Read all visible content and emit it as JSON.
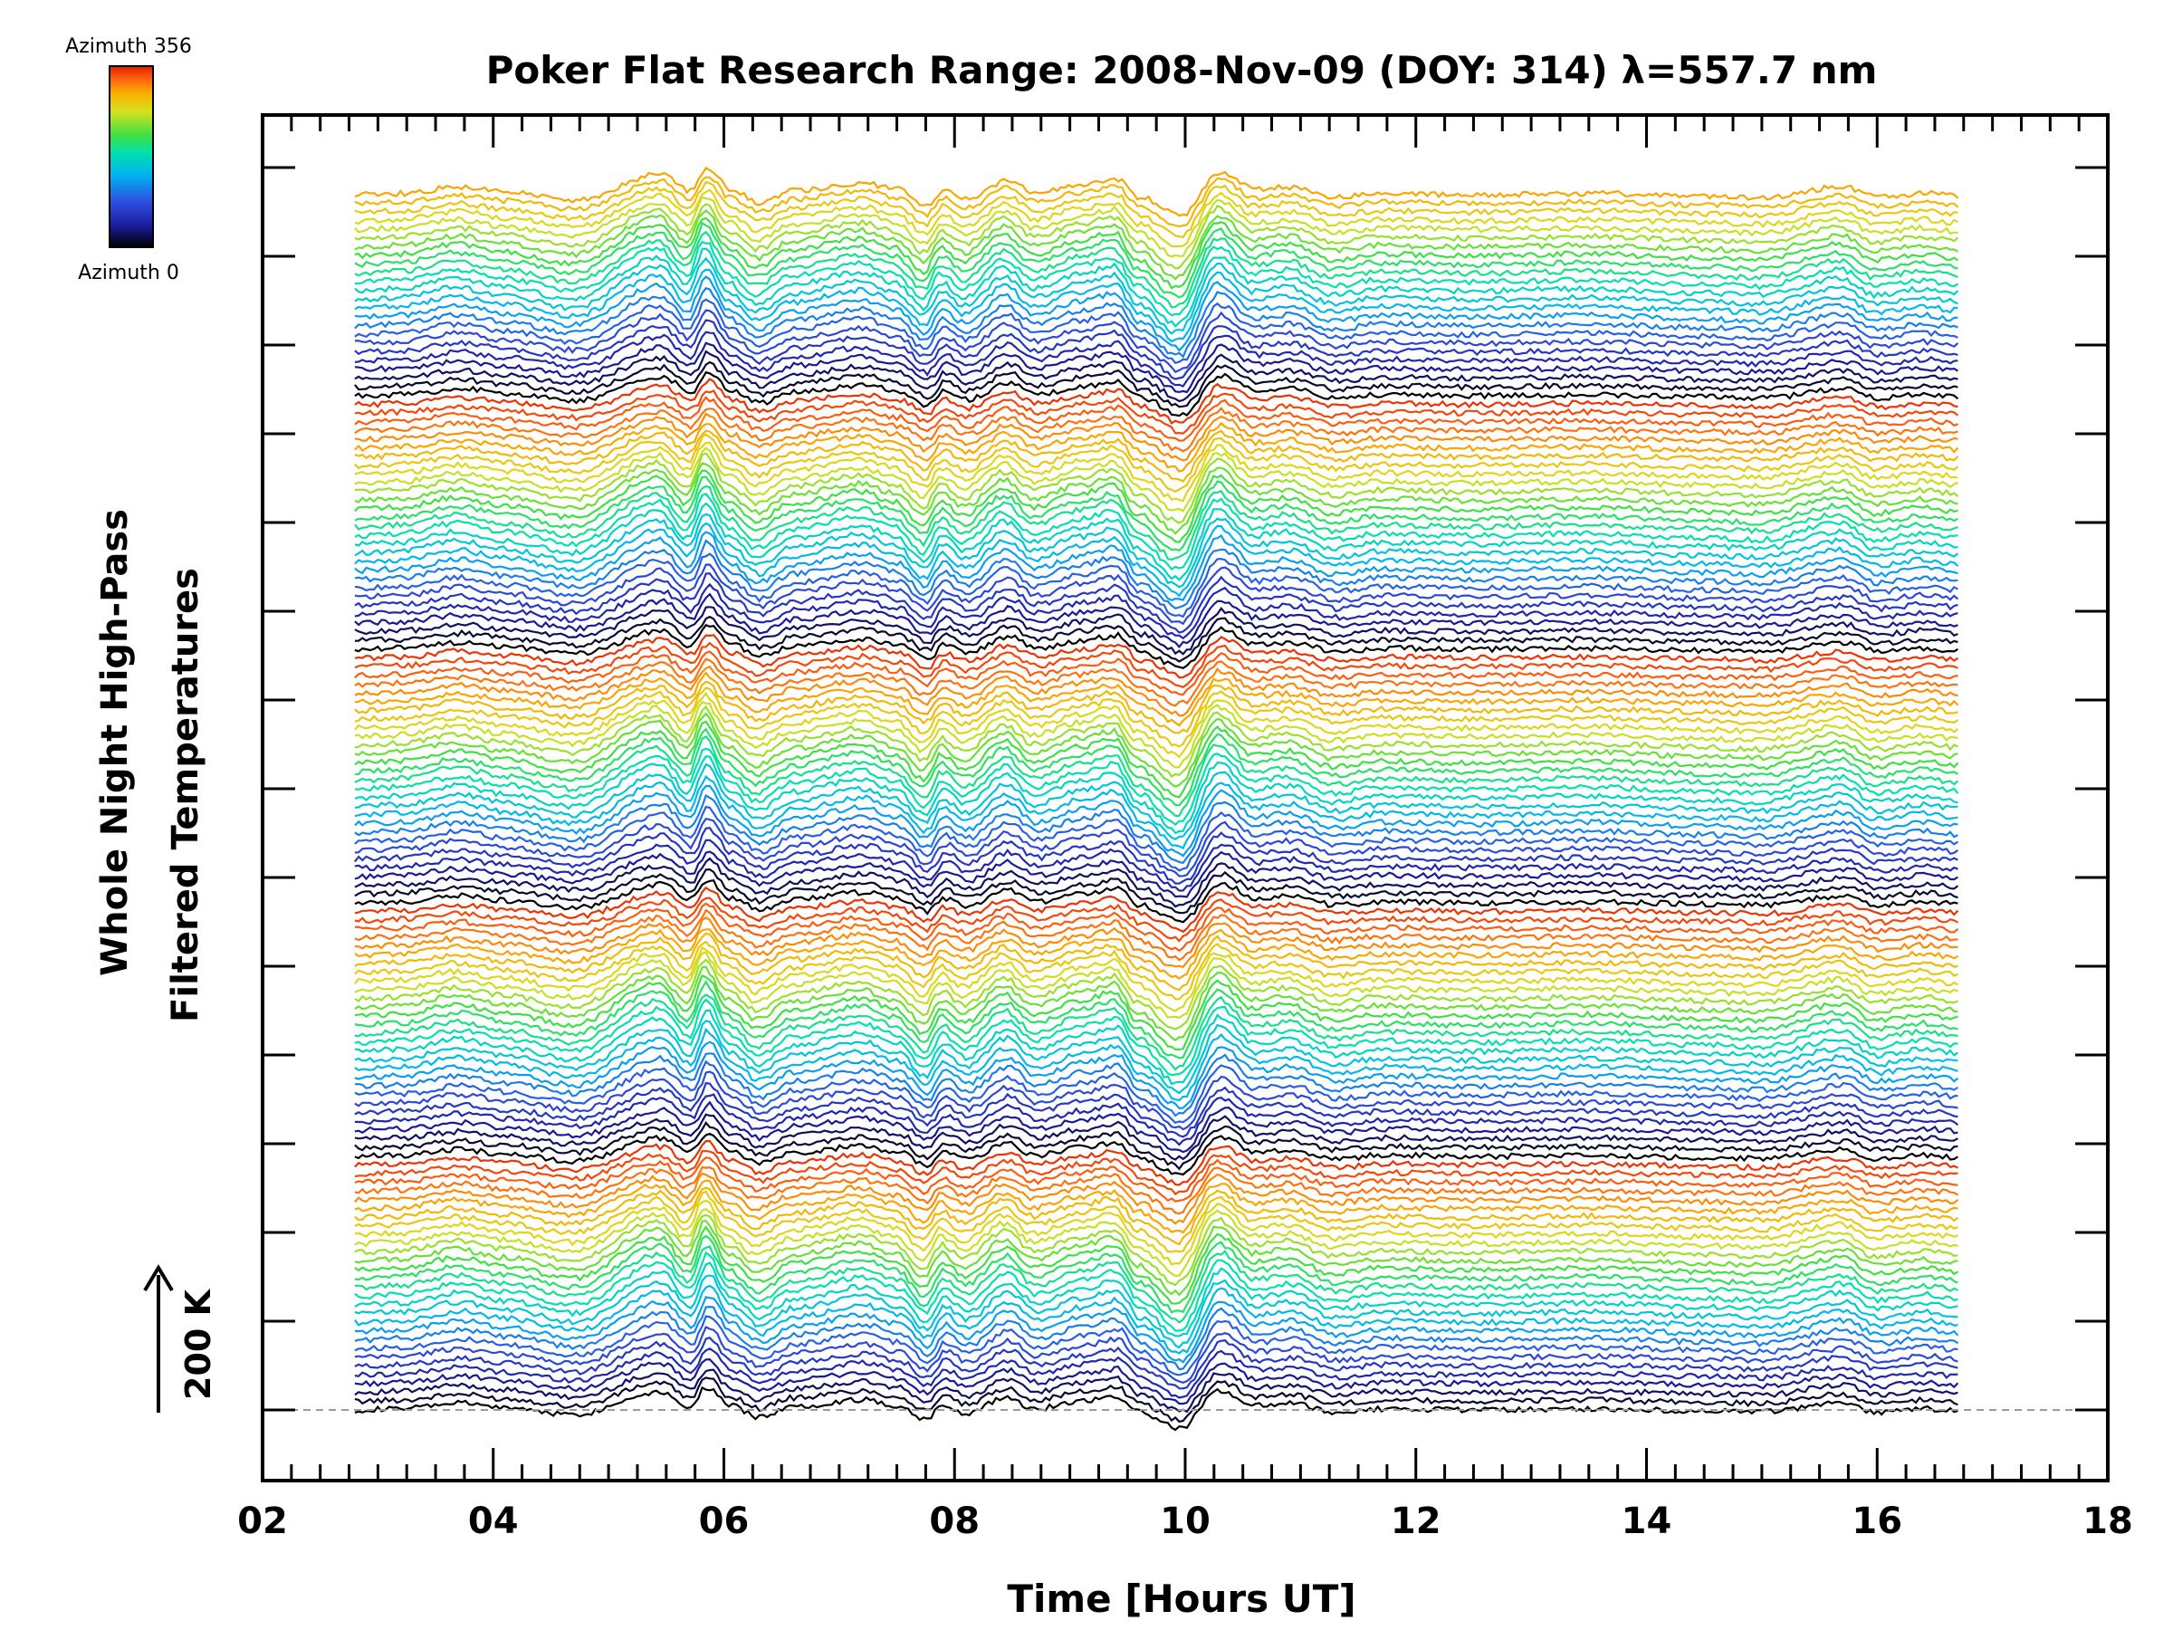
{
  "chart_data": {
    "type": "line",
    "title": "Poker Flat Research Range: 2008-Nov-09 (DOY: 314) λ=557.7 nm",
    "xlabel": "Time [Hours UT]",
    "ylabel_line1": "Whole Night High-Pass",
    "ylabel_line2": "Filtered Temperatures",
    "scale_label": "200 K",
    "xlim": [
      2,
      18
    ],
    "xtick_labels": [
      "02",
      "04",
      "06",
      "08",
      "10",
      "12",
      "14",
      "16",
      "18"
    ],
    "xtick_values": [
      2,
      4,
      6,
      8,
      10,
      12,
      14,
      16,
      18
    ],
    "colorbar": {
      "top_label": "Azimuth 356",
      "bottom_label": "Azimuth 0"
    },
    "num_traces": 140,
    "trace_spacing_K": 19.5,
    "time_range": [
      2.8,
      16.7
    ],
    "grid": false,
    "baseline_dashed": true,
    "colors": {
      "axis": "#000000",
      "baseline": "#9a9a9a",
      "colormap": [
        "#000000",
        "#1c1c9e",
        "#2e4fe0",
        "#00b4f0",
        "#00e0b0",
        "#40e040",
        "#d8e020",
        "#f8b000",
        "#ff6010",
        "#e02000"
      ]
    },
    "common_profile": [
      [
        2.8,
        0
      ],
      [
        3.2,
        10
      ],
      [
        3.7,
        60
      ],
      [
        4.1,
        20
      ],
      [
        4.7,
        -40
      ],
      [
        5.45,
        160
      ],
      [
        5.7,
        30
      ],
      [
        5.85,
        200
      ],
      [
        6.05,
        40
      ],
      [
        6.3,
        -60
      ],
      [
        6.6,
        30
      ],
      [
        7.2,
        90
      ],
      [
        7.5,
        40
      ],
      [
        7.75,
        -80
      ],
      [
        7.9,
        40
      ],
      [
        8.1,
        -30
      ],
      [
        8.45,
        110
      ],
      [
        8.7,
        10
      ],
      [
        9.1,
        80
      ],
      [
        9.4,
        120
      ],
      [
        9.6,
        -20
      ],
      [
        9.95,
        -160
      ],
      [
        10.3,
        170
      ],
      [
        10.6,
        40
      ],
      [
        10.9,
        60
      ],
      [
        11.3,
        -20
      ],
      [
        11.7,
        10
      ],
      [
        12.5,
        0
      ],
      [
        13.5,
        10
      ],
      [
        14.5,
        -10
      ],
      [
        15.0,
        -20
      ],
      [
        15.7,
        60
      ],
      [
        16.0,
        -20
      ],
      [
        16.4,
        10
      ],
      [
        16.7,
        -10
      ]
    ]
  }
}
